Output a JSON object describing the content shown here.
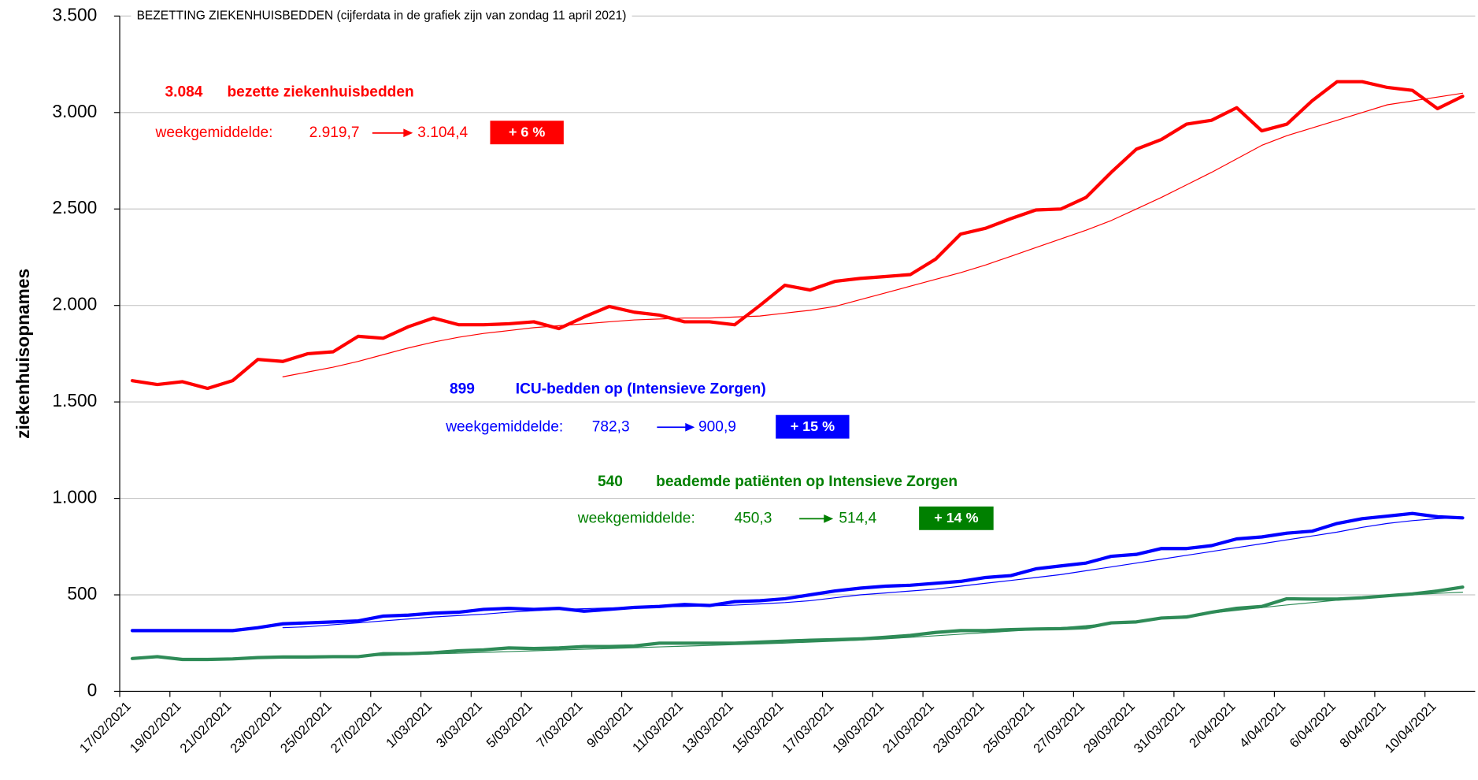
{
  "chart_data": {
    "type": "line",
    "title": "BEZETTING ZIEKENHUISBEDDEN (cijferdata in de grafiek zijn van zondag 11 april 2021)",
    "y_label": "ziekenhuisopnames",
    "categories": [
      "17/02/2021",
      null,
      "19/02/2021",
      null,
      "21/02/2021",
      null,
      "23/02/2021",
      null,
      "25/02/2021",
      null,
      "27/02/2021",
      null,
      "1/03/2021",
      null,
      "3/03/2021",
      null,
      "5/03/2021",
      null,
      "7/03/2021",
      null,
      "9/03/2021",
      null,
      "11/03/2021",
      null,
      "13/03/2021",
      null,
      "15/03/2021",
      null,
      "17/03/2021",
      null,
      "19/03/2021",
      null,
      "21/03/2021",
      null,
      "23/03/2021",
      null,
      "25/03/2021",
      null,
      "27/03/2021",
      null,
      "29/03/2021",
      null,
      "31/03/2021",
      null,
      "2/04/2021",
      null,
      "4/04/2021",
      null,
      "6/04/2021",
      null,
      "8/04/2021",
      null,
      "10/04/2021",
      null
    ],
    "ylim": [
      0,
      3500
    ],
    "yticks": [
      0,
      500,
      {
        "value": 1000,
        "label": "1.000"
      },
      {
        "value": 1500,
        "label": "1.500"
      },
      {
        "value": 2000,
        "label": "2.000"
      },
      {
        "value": 2500,
        "label": "2.500"
      },
      {
        "value": 3000,
        "label": "3.000"
      },
      {
        "value": 3500,
        "label": "3.500"
      }
    ],
    "grid": true,
    "series": [
      {
        "name": "bezette ziekenhuisbedden",
        "color": "#ff0000",
        "width": 3.5,
        "values": [
          1610,
          1590,
          1605,
          1570,
          1610,
          1720,
          1710,
          1750,
          1760,
          1840,
          1830,
          1890,
          1935,
          1900,
          1900,
          1905,
          1915,
          1880,
          1940,
          1995,
          1965,
          1950,
          1915,
          1915,
          1900,
          2000,
          2105,
          2080,
          2125,
          2140,
          2150,
          2160,
          2240,
          2370,
          2400,
          2450,
          2495,
          2500,
          2560,
          2690,
          2810,
          2860,
          2940,
          2960,
          3025,
          2905,
          2940,
          3060,
          3160,
          3160,
          3130,
          3115,
          3020,
          3084
        ]
      },
      {
        "color": "#ff0000",
        "width": 1,
        "values": [
          null,
          null,
          null,
          null,
          null,
          null,
          1630,
          1655,
          1680,
          1710,
          1745,
          1780,
          1810,
          1835,
          1855,
          1870,
          1885,
          1895,
          1905,
          1915,
          1925,
          1930,
          1935,
          1935,
          1940,
          1945,
          1960,
          1975,
          1995,
          2030,
          2065,
          2100,
          2135,
          2170,
          2210,
          2255,
          2300,
          2345,
          2390,
          2440,
          2500,
          2560,
          2625,
          2690,
          2760,
          2830,
          2880,
          2920,
          2960,
          3000,
          3040,
          3060,
          3080,
          3100
        ]
      },
      {
        "name": "ICU-bedden op (Intensieve Zorgen)",
        "color": "#0000ff",
        "width": 3.5,
        "values": [
          315,
          315,
          315,
          315,
          315,
          330,
          350,
          355,
          360,
          365,
          390,
          395,
          405,
          410,
          425,
          430,
          425,
          430,
          415,
          425,
          435,
          440,
          450,
          445,
          465,
          470,
          480,
          500,
          520,
          535,
          545,
          550,
          560,
          570,
          590,
          600,
          635,
          650,
          665,
          700,
          710,
          740,
          740,
          755,
          790,
          800,
          820,
          830,
          870,
          895,
          908,
          922,
          905,
          899
        ]
      },
      {
        "color": "#0000ff",
        "width": 1,
        "values": [
          null,
          null,
          null,
          null,
          null,
          null,
          330,
          335,
          345,
          355,
          365,
          375,
          385,
          393,
          400,
          410,
          418,
          425,
          428,
          432,
          435,
          438,
          440,
          443,
          447,
          453,
          460,
          470,
          485,
          500,
          510,
          520,
          530,
          545,
          560,
          575,
          590,
          605,
          625,
          645,
          665,
          685,
          705,
          725,
          745,
          765,
          785,
          805,
          825,
          850,
          870,
          885,
          895,
          901
        ]
      },
      {
        "name": "beademde patiënten op Intensieve Zorgen",
        "color": "#2e8b57",
        "width": 3.5,
        "values": [
          170,
          180,
          165,
          165,
          168,
          175,
          178,
          178,
          180,
          180,
          195,
          195,
          200,
          210,
          215,
          225,
          222,
          225,
          232,
          232,
          235,
          250,
          250,
          250,
          250,
          255,
          260,
          265,
          268,
          272,
          280,
          290,
          305,
          315,
          315,
          320,
          323,
          325,
          330,
          355,
          360,
          380,
          385,
          410,
          430,
          440,
          480,
          478,
          478,
          485,
          495,
          505,
          520,
          540
        ]
      },
      {
        "color": "#2e8b57",
        "width": 1,
        "values": [
          null,
          null,
          null,
          null,
          null,
          null,
          175,
          178,
          180,
          183,
          186,
          190,
          194,
          198,
          202,
          206,
          210,
          214,
          218,
          222,
          226,
          230,
          234,
          238,
          242,
          246,
          250,
          255,
          260,
          266,
          272,
          280,
          288,
          296,
          304,
          312,
          320,
          330,
          340,
          352,
          364,
          378,
          392,
          406,
          420,
          434,
          448,
          460,
          472,
          482,
          492,
          500,
          508,
          514
        ]
      }
    ],
    "annotations": [
      {
        "value": "3.084",
        "label_series": 0,
        "average_label": "weekgemiddelde:",
        "from": "2.919,7",
        "to": "3.104,4",
        "change": "+ 6 %",
        "color": "#ff0000",
        "box_color": "#ff0000"
      },
      {
        "value": "899",
        "label_series": 2,
        "average_label": "weekgemiddelde:",
        "from": "782,3",
        "to": "900,9",
        "change": "+ 15 %",
        "color": "#0000ff",
        "box_color": "#0000ff"
      },
      {
        "value": "540",
        "label_series": 4,
        "average_label": "weekgemiddelde:",
        "from": "450,3",
        "to": "514,4",
        "change": "+ 14 %",
        "color": "#008000",
        "box_color": "#008000"
      }
    ]
  }
}
